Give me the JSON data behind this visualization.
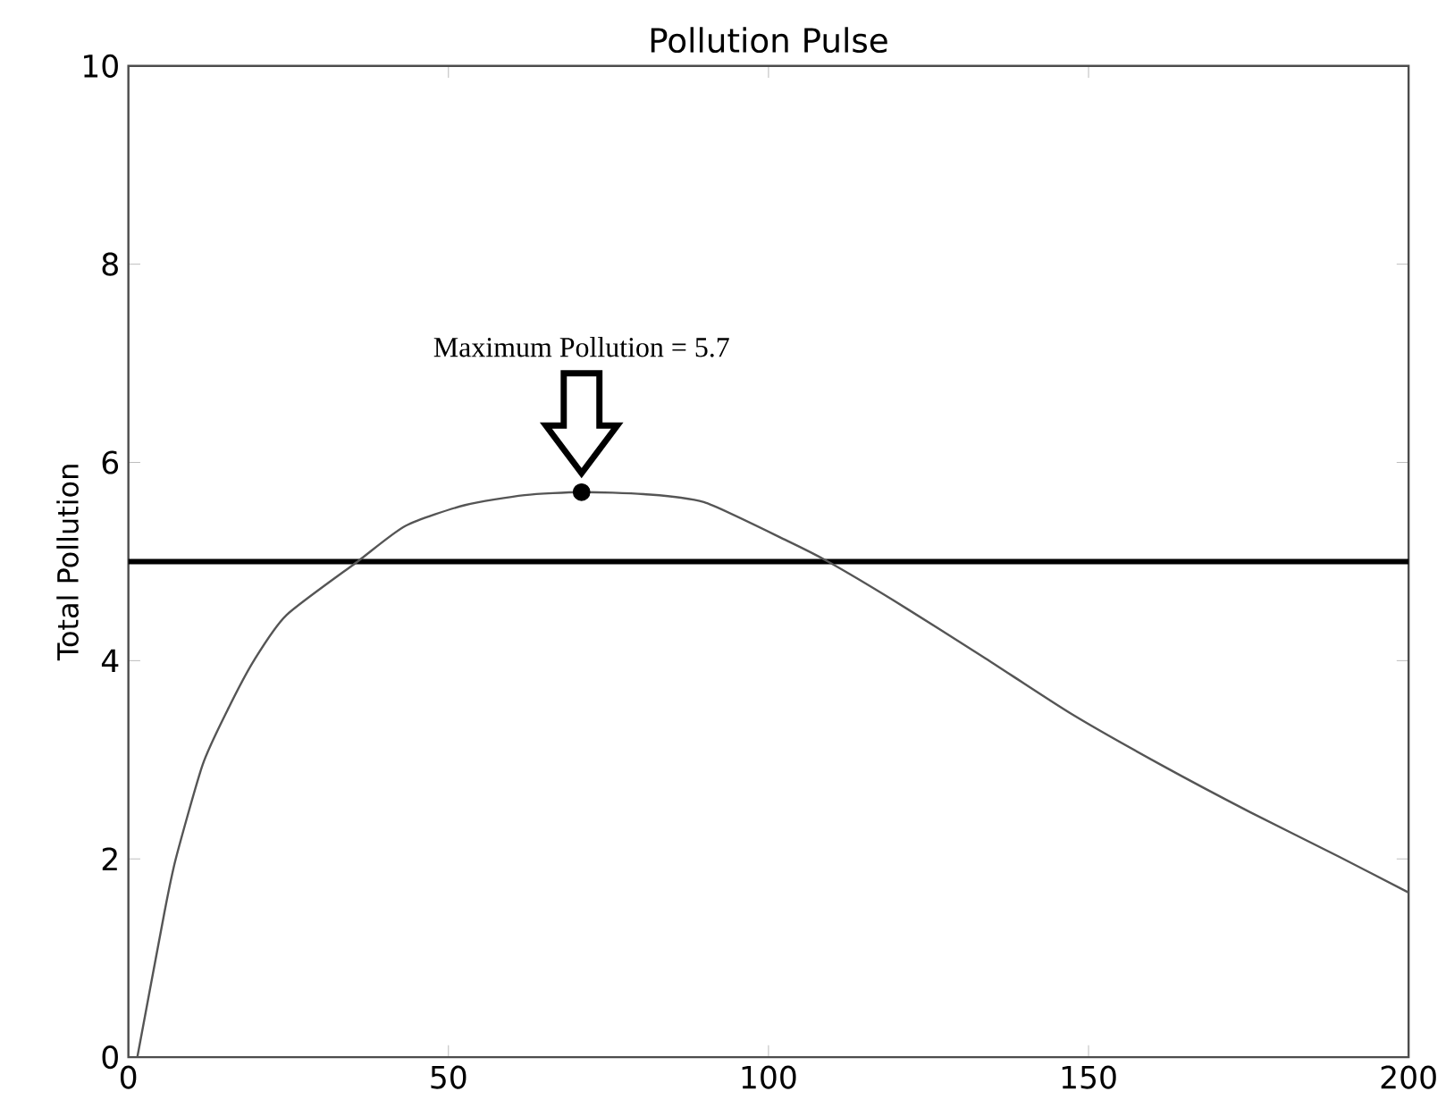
{
  "chart_data": {
    "type": "line",
    "title": "Pollution Pulse",
    "ylabel": "Total Pollution",
    "xlim": [
      0,
      200
    ],
    "ylim": [
      0,
      10
    ],
    "xticks": [
      0,
      50,
      100,
      150,
      200
    ],
    "yticks": [
      0,
      2,
      4,
      6,
      8,
      10
    ],
    "grid": false,
    "series": [
      {
        "color": "#555555",
        "marker": "none",
        "x": [
          1.4,
          5.6,
          7.4,
          11.6,
          15.4,
          19.6,
          24.7,
          35.8,
          43.3,
          52.6,
          61.9,
          70.8,
          80.5,
          89.9,
          102.9,
          109.3,
          119.5,
          133.5,
          147.4,
          161.3,
          175.3,
          189.2,
          200
        ],
        "values": [
          0,
          1.45,
          2,
          2.95,
          3.49,
          4,
          4.46,
          5,
          5.36,
          5.57,
          5.67,
          5.7,
          5.68,
          5.6,
          5.21,
          5.0,
          4.61,
          4.04,
          3.46,
          2.95,
          2.47,
          2.02,
          1.66
        ]
      },
      {
        "type": "scatter",
        "color": "#000000",
        "marker": "circle",
        "x": [
          70.8
        ],
        "values": [
          5.7
        ]
      }
    ],
    "ref_lines": [
      {
        "axis": "y",
        "value": 5,
        "color": "#000000"
      }
    ],
    "annotations": [
      "Maximum Pollution = 5.7"
    ]
  }
}
